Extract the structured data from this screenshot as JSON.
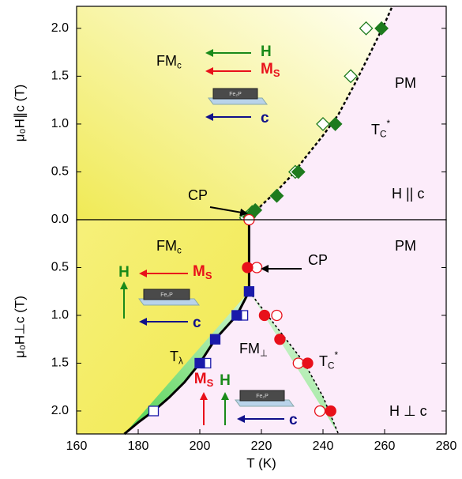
{
  "chart_data": [
    {
      "type": "scatter",
      "y_label": "μ₀H∥c (T)",
      "xlim": [
        160,
        280
      ],
      "ylim": [
        0,
        2.23
      ],
      "inverted": false,
      "yticks": [
        {
          "value": 0,
          "label": "0.0"
        },
        {
          "value": 0.5,
          "label": "0.5"
        },
        {
          "value": 1,
          "label": "1.0"
        },
        {
          "value": 1.5,
          "label": "1.5"
        },
        {
          "value": 2,
          "label": "2.0"
        }
      ],
      "series": [
        {
          "kind": "line",
          "style": "dashed",
          "color": "#000000",
          "x": [
            216,
            220,
            225,
            230,
            235,
            240,
            245,
            250,
            255,
            260,
            262.5
          ],
          "values": [
            0,
            0.15,
            0.3,
            0.47,
            0.68,
            0.88,
            1.1,
            1.4,
            1.72,
            2.05,
            2.23
          ]
        },
        {
          "kind": "marker",
          "marker": "diamond",
          "filled": false,
          "color": "#1e7b1e",
          "x": [
            215,
            217,
            231,
            240,
            249,
            254
          ],
          "values": [
            0.02,
            0.08,
            0.5,
            1.0,
            1.5,
            2.0
          ]
        },
        {
          "kind": "marker",
          "marker": "diamond",
          "filled": true,
          "color": "#1e7b1e",
          "x": [
            216,
            218,
            225,
            232,
            244,
            259
          ],
          "values": [
            0.03,
            0.1,
            0.25,
            0.5,
            1.0,
            2.0
          ]
        }
      ],
      "annotations": [
        {
          "text": "FM",
          "sub": "c"
        },
        {
          "text": "PM"
        },
        {
          "text": "T",
          "sub": "C",
          "sup": "*"
        },
        {
          "text": "H || c"
        },
        {
          "text": "CP"
        }
      ],
      "insets": [
        {
          "sample": "Fe₂P",
          "arrows": [
            {
              "label": "H",
              "color": "#1a8a1a"
            },
            {
              "label": "M",
              "sub": "S",
              "color": "#e8101a"
            },
            {
              "label": "c",
              "color": "#10108a"
            }
          ]
        }
      ]
    },
    {
      "type": "scatter",
      "y_label": "μ₀H⊥c (T)",
      "x_label": "T (K)",
      "xlim": [
        160,
        280
      ],
      "ylim": [
        0,
        2.24
      ],
      "inverted": true,
      "xticks": [
        160,
        180,
        200,
        220,
        240,
        260,
        280
      ],
      "yticks": [
        {
          "value": 0.5,
          "label": "0.5"
        },
        {
          "value": 1,
          "label": "1.0"
        },
        {
          "value": 1.5,
          "label": "1.5"
        },
        {
          "value": 2,
          "label": "2.0"
        }
      ],
      "series": [
        {
          "kind": "line",
          "style": "solid",
          "color": "#000000",
          "x": [
            175.5,
            180,
            185,
            190,
            195,
            200,
            205,
            212,
            216,
            216
          ],
          "values": [
            2.24,
            2.12,
            2.0,
            1.86,
            1.7,
            1.5,
            1.25,
            1.0,
            0.75,
            0
          ]
        },
        {
          "kind": "line",
          "style": "dashed",
          "color": "#000000",
          "x": [
            216,
            222,
            228,
            234,
            240,
            245
          ],
          "values": [
            0.75,
            1.0,
            1.25,
            1.5,
            1.85,
            2.24
          ]
        },
        {
          "kind": "marker",
          "marker": "square",
          "filled": false,
          "color": "#1a1aaa",
          "x": [
            214,
            202,
            185
          ],
          "values": [
            1.0,
            1.5,
            2.0
          ]
        },
        {
          "kind": "marker",
          "marker": "square",
          "filled": true,
          "color": "#1a1aaa",
          "x": [
            216,
            212,
            205,
            200
          ],
          "values": [
            0.75,
            1.0,
            1.25,
            1.5
          ]
        },
        {
          "kind": "marker",
          "marker": "circle",
          "filled": false,
          "color": "#e8101a",
          "x": [
            216,
            218.5,
            225,
            232,
            239
          ],
          "values": [
            0,
            0.5,
            1.0,
            1.5,
            2.0
          ]
        },
        {
          "kind": "marker",
          "marker": "circle",
          "filled": true,
          "color": "#e8101a",
          "x": [
            215.5,
            221,
            226,
            235,
            242.5
          ],
          "values": [
            0.5,
            1.0,
            1.25,
            1.5,
            2.0
          ]
        }
      ],
      "annotations": [
        {
          "text": "FM",
          "sub": "c"
        },
        {
          "text": "PM"
        },
        {
          "text": "CP"
        },
        {
          "text": "T",
          "sub": "λ"
        },
        {
          "text": "FM",
          "sub": "⊥"
        },
        {
          "text": "T",
          "sub": "C",
          "sup": "*"
        },
        {
          "text": "H ⊥ c"
        }
      ],
      "insets": [
        {
          "sample": "Fe₂P",
          "arrows": [
            {
              "label": "M",
              "sub": "S",
              "color": "#e8101a"
            },
            {
              "label": "H",
              "color": "#1a8a1a"
            },
            {
              "label": "c",
              "color": "#10108a"
            }
          ]
        },
        {
          "sample": "Fe₂P",
          "arrows": [
            {
              "label": "M",
              "sub": "S",
              "color": "#e8101a"
            },
            {
              "label": "H",
              "color": "#1a8a1a"
            },
            {
              "label": "c",
              "color": "#10108a"
            }
          ]
        }
      ]
    }
  ]
}
